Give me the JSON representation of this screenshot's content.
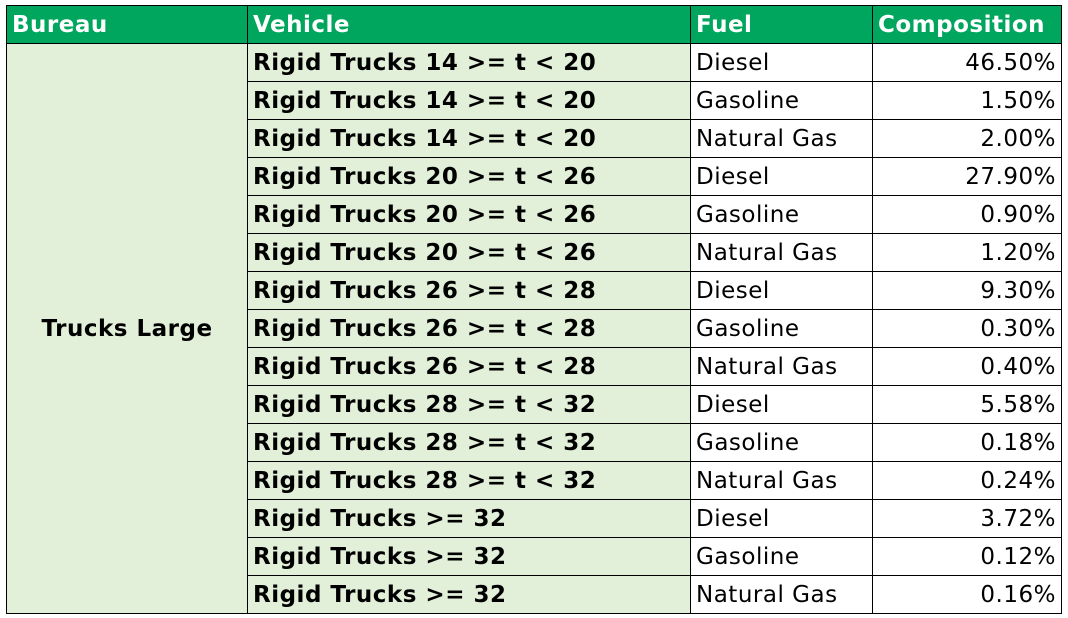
{
  "table": {
    "headers": [
      "Bureau",
      "Vehicle",
      "Fuel",
      "Composition"
    ],
    "bureau": "Trucks Large",
    "rows": [
      {
        "vehicle": "Rigid Trucks 14 >= t < 20",
        "fuel": "Diesel",
        "composition": "46.50%"
      },
      {
        "vehicle": "Rigid Trucks 14 >= t < 20",
        "fuel": "Gasoline",
        "composition": "1.50%"
      },
      {
        "vehicle": "Rigid Trucks 14 >= t < 20",
        "fuel": "Natural Gas",
        "composition": "2.00%"
      },
      {
        "vehicle": "Rigid Trucks 20 >= t < 26",
        "fuel": "Diesel",
        "composition": "27.90%"
      },
      {
        "vehicle": "Rigid Trucks 20 >= t < 26",
        "fuel": "Gasoline",
        "composition": "0.90%"
      },
      {
        "vehicle": "Rigid Trucks 20 >= t < 26",
        "fuel": "Natural Gas",
        "composition": "1.20%"
      },
      {
        "vehicle": "Rigid Trucks 26 >= t < 28",
        "fuel": "Diesel",
        "composition": "9.30%"
      },
      {
        "vehicle": "Rigid Trucks 26 >= t < 28",
        "fuel": "Gasoline",
        "composition": "0.30%"
      },
      {
        "vehicle": "Rigid Trucks 26 >= t < 28",
        "fuel": "Natural Gas",
        "composition": "0.40%"
      },
      {
        "vehicle": "Rigid Trucks 28 >= t < 32",
        "fuel": "Diesel",
        "composition": "5.58%"
      },
      {
        "vehicle": "Rigid Trucks 28 >= t < 32",
        "fuel": "Gasoline",
        "composition": "0.18%"
      },
      {
        "vehicle": "Rigid Trucks 28 >= t < 32",
        "fuel": "Natural Gas",
        "composition": "0.24%"
      },
      {
        "vehicle": "Rigid Trucks >= 32",
        "fuel": "Diesel",
        "composition": "3.72%"
      },
      {
        "vehicle": "Rigid Trucks >= 32",
        "fuel": "Gasoline",
        "composition": "0.12%"
      },
      {
        "vehicle": "Rigid Trucks >= 32",
        "fuel": "Natural Gas",
        "composition": "0.16%"
      }
    ]
  },
  "colors": {
    "header_bg": "#00a65e",
    "header_text": "#ffffff",
    "label_bg": "#e2efd9",
    "cell_bg": "#ffffff",
    "border": "#000000"
  }
}
